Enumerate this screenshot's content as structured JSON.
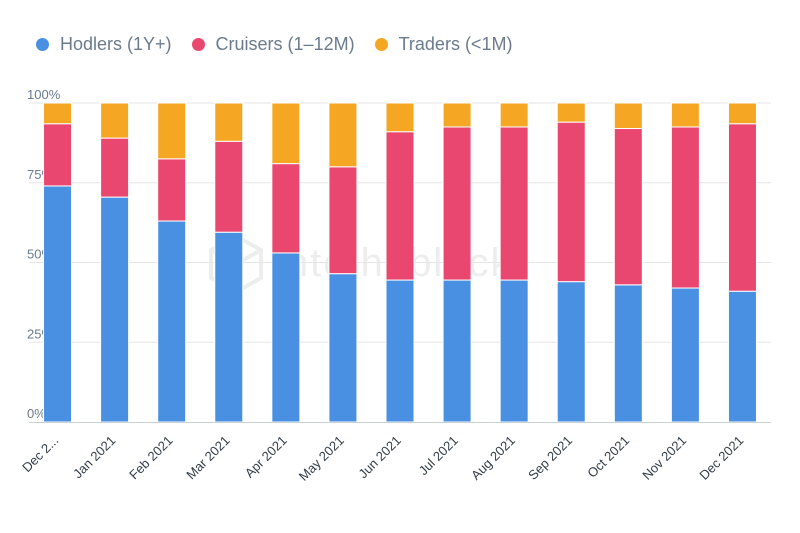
{
  "legend": [
    {
      "label": "Hodlers (1Y+)",
      "color": "#4a90e2"
    },
    {
      "label": "Cruisers (1–12M)",
      "color": "#e9476f"
    },
    {
      "label": "Traders (<1M)",
      "color": "#f5a623"
    }
  ],
  "watermark": {
    "text": "intotheblock",
    "icon": "cube-logo-icon"
  },
  "chart_data": {
    "type": "bar",
    "stacked": true,
    "categories": [
      "Dec 2...",
      "Jan 2021",
      "Feb 2021",
      "Mar 2021",
      "Apr 2021",
      "May 2021",
      "Jun 2021",
      "Jul 2021",
      "Aug 2021",
      "Sep 2021",
      "Oct 2021",
      "Nov 2021",
      "Dec 2021"
    ],
    "series": [
      {
        "name": "Hodlers (1Y+)",
        "color": "#4a90e2",
        "values": [
          74,
          70.5,
          63,
          59.5,
          53,
          46.5,
          44.5,
          44.5,
          44.5,
          44,
          43,
          42,
          41
        ]
      },
      {
        "name": "Cruisers (1–12M)",
        "color": "#e9476f",
        "values": [
          19.5,
          18.5,
          19.5,
          28.5,
          28,
          33.5,
          46.5,
          48,
          48,
          50,
          49,
          50.5,
          52.5
        ]
      },
      {
        "name": "Traders (<1M)",
        "color": "#f5a623",
        "values": [
          6.5,
          11,
          17.5,
          12,
          19,
          20,
          9,
          7.5,
          7.5,
          6,
          8,
          7.5,
          6.5
        ]
      }
    ],
    "yticks": [
      "0%",
      "25%",
      "50%",
      "75%",
      "100%"
    ],
    "ylim": [
      0,
      100
    ],
    "grid": true,
    "legend_position": "top-left"
  }
}
